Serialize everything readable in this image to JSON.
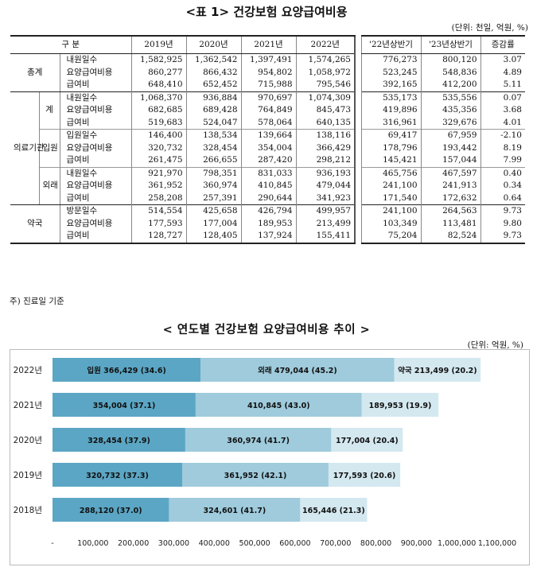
{
  "table": {
    "title": "<표 1> 건강보험 요양급여비용",
    "unit": "(단위: 천일, 억원, %)",
    "headers": [
      "구 분",
      "2019년",
      "2020년",
      "2021년",
      "2022년",
      "'22년상반기",
      "'23년상반기",
      "증감률"
    ],
    "rows": [
      {
        "g1": "총계",
        "g2": "",
        "item": "내원일수",
        "v": [
          "1,582,925",
          "1,362,542",
          "1,397,491",
          "1,574,265",
          "776,273",
          "800,120",
          "3.07"
        ]
      },
      {
        "g1": "",
        "g2": "",
        "item": "요양급여비용",
        "v": [
          "860,277",
          "866,432",
          "954,802",
          "1,058,972",
          "523,245",
          "548,836",
          "4.89"
        ]
      },
      {
        "g1": "",
        "g2": "",
        "item": "급여비",
        "v": [
          "648,410",
          "652,452",
          "715,988",
          "795,546",
          "392,165",
          "412,200",
          "5.11"
        ]
      },
      {
        "g1": "의료기관",
        "g2": "계",
        "item": "내원일수",
        "v": [
          "1,068,370",
          "936,884",
          "970,697",
          "1,074,309",
          "535,173",
          "535,556",
          "0.07"
        ]
      },
      {
        "g1": "",
        "g2": "",
        "item": "요양급여비용",
        "v": [
          "682,685",
          "689,428",
          "764,849",
          "845,473",
          "419,896",
          "435,356",
          "3.68"
        ]
      },
      {
        "g1": "",
        "g2": "",
        "item": "급여비",
        "v": [
          "519,683",
          "524,047",
          "578,064",
          "640,135",
          "316,961",
          "329,676",
          "4.01"
        ]
      },
      {
        "g1": "",
        "g2": "입원",
        "item": "입원일수",
        "v": [
          "146,400",
          "138,534",
          "139,664",
          "138,116",
          "69,417",
          "67,959",
          "-2.10"
        ]
      },
      {
        "g1": "",
        "g2": "",
        "item": "요양급여비용",
        "v": [
          "320,732",
          "328,454",
          "354,004",
          "366,429",
          "178,796",
          "193,442",
          "8.19"
        ]
      },
      {
        "g1": "",
        "g2": "",
        "item": "급여비",
        "v": [
          "261,475",
          "266,655",
          "287,420",
          "298,212",
          "145,421",
          "157,044",
          "7.99"
        ]
      },
      {
        "g1": "",
        "g2": "외래",
        "item": "내원일수",
        "v": [
          "921,970",
          "798,351",
          "831,033",
          "936,193",
          "465,756",
          "467,597",
          "0.40"
        ]
      },
      {
        "g1": "",
        "g2": "",
        "item": "요양급여비용",
        "v": [
          "361,952",
          "360,974",
          "410,845",
          "479,044",
          "241,100",
          "241,913",
          "0.34"
        ]
      },
      {
        "g1": "",
        "g2": "",
        "item": "급여비",
        "v": [
          "258,208",
          "257,391",
          "290,644",
          "341,923",
          "171,540",
          "172,632",
          "0.64"
        ]
      },
      {
        "g1": "약국",
        "g2": "",
        "item": "방문일수",
        "v": [
          "514,554",
          "425,658",
          "426,794",
          "499,957",
          "241,100",
          "264,563",
          "9.73"
        ]
      },
      {
        "g1": "",
        "g2": "",
        "item": "요양급여비용",
        "v": [
          "177,593",
          "177,004",
          "189,953",
          "213,499",
          "103,349",
          "113,481",
          "9.80"
        ]
      },
      {
        "g1": "",
        "g2": "",
        "item": "급여비",
        "v": [
          "128,727",
          "128,405",
          "137,924",
          "155,411",
          "75,204",
          "82,524",
          "9.73"
        ]
      }
    ],
    "note": "주) 진료일 기준"
  },
  "chart_data": {
    "type": "bar",
    "orientation": "horizontal",
    "stacked": true,
    "title": "< 연도별 건강보험 요양급여비용 추이 >",
    "unit": "(단위: 억원, %)",
    "categories": [
      "2022년",
      "2021년",
      "2020년",
      "2019년",
      "2018년"
    ],
    "series": [
      {
        "name": "입원",
        "color": "#5ba6c4",
        "values": [
          366429,
          354004,
          328454,
          320732,
          288120
        ],
        "labels": [
          "입원 366,429 (34.6)",
          "354,004 (37.1)",
          "328,454 (37.9)",
          "320,732 (37.3)",
          "288,120 (37.0)"
        ]
      },
      {
        "name": "외래",
        "color": "#9fcbdc",
        "values": [
          479044,
          410845,
          360974,
          361952,
          324601
        ],
        "labels": [
          "외래 479,044 (45.2)",
          "410,845 (43.0)",
          "360,974 (41.7)",
          "361,952 (42.1)",
          "324,601 (41.7)"
        ]
      },
      {
        "name": "약국",
        "color": "#d4e8f0",
        "values": [
          213499,
          189953,
          177004,
          177593,
          165446
        ],
        "labels": [
          "약국 213,499 (20.2)",
          "189,953 (19.9)",
          "177,004 (20.4)",
          "177,593 (20.6)",
          "165,446 (21.3)"
        ]
      }
    ],
    "xlim": [
      0,
      1100000
    ],
    "xticks": [
      "-",
      "100,000",
      "200,000",
      "300,000",
      "400,000",
      "500,000",
      "600,000",
      "700,000",
      "800,000",
      "900,000",
      "1,000,000",
      "1,100,000"
    ],
    "grid": false
  }
}
